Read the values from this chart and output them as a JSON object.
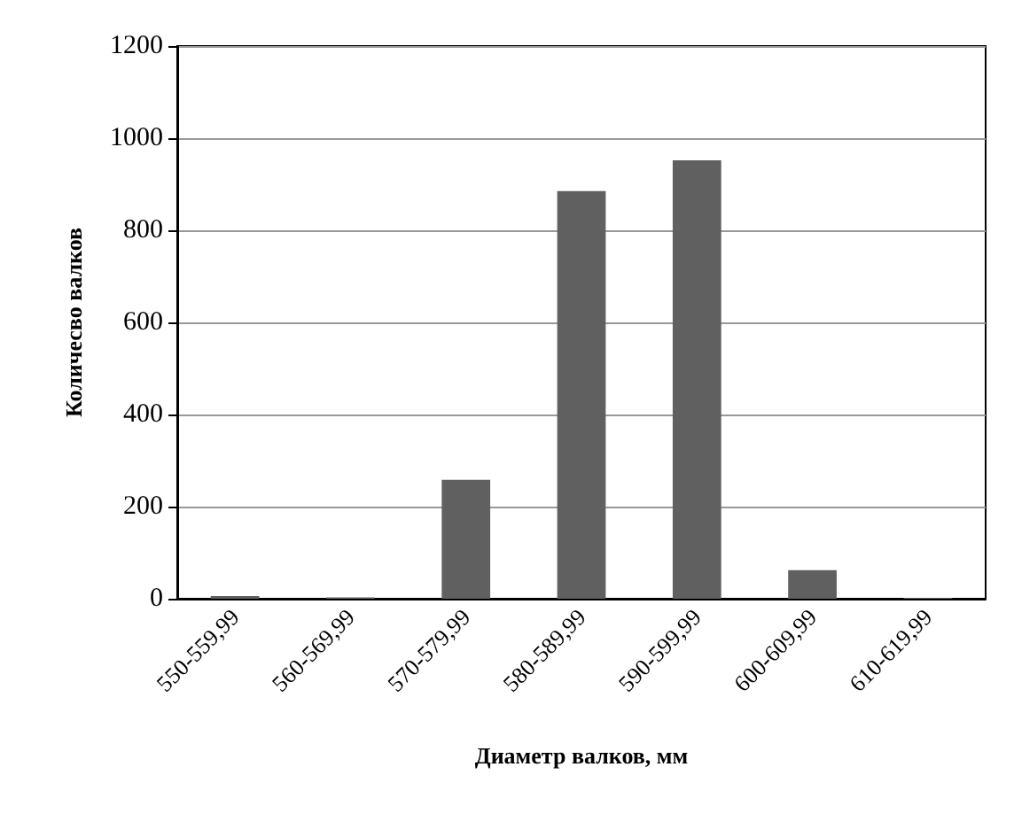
{
  "chart_data": {
    "type": "bar",
    "xlabel": "Диаметр валков, мм",
    "ylabel": "Количесво валков",
    "categories": [
      "550-559,99",
      "560-569,99",
      "570-579,99",
      "580-589,99",
      "590-599,99",
      "600-609,99",
      "610-619,99"
    ],
    "values": [
      6,
      3,
      258,
      885,
      952,
      62,
      2
    ],
    "color": "#606060",
    "ylim": [
      0,
      1200
    ],
    "yticks": [
      0,
      200,
      400,
      600,
      800,
      1000,
      1200
    ],
    "grid": "y"
  }
}
